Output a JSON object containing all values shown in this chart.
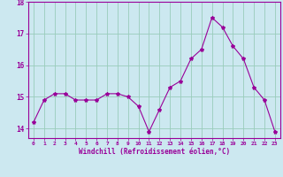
{
  "x": [
    0,
    1,
    2,
    3,
    4,
    5,
    6,
    7,
    8,
    9,
    10,
    11,
    12,
    13,
    14,
    15,
    16,
    17,
    18,
    19,
    20,
    21,
    22,
    23
  ],
  "y": [
    14.2,
    14.9,
    15.1,
    15.1,
    14.9,
    14.9,
    14.9,
    15.1,
    15.1,
    15.0,
    14.7,
    13.9,
    14.6,
    15.3,
    15.5,
    16.2,
    16.5,
    17.5,
    17.2,
    16.6,
    16.2,
    15.3,
    14.9,
    13.9
  ],
  "line_color": "#990099",
  "marker": "*",
  "marker_size": 3,
  "background_color": "#cce8f0",
  "grid_color": "#99ccbb",
  "xlabel": "Windchill (Refroidissement éolien,°C)",
  "ylabel": "",
  "ylim": [
    13.7,
    18.0
  ],
  "yticks": [
    14,
    15,
    16,
    17,
    18
  ],
  "xticks": [
    0,
    1,
    2,
    3,
    4,
    5,
    6,
    7,
    8,
    9,
    10,
    11,
    12,
    13,
    14,
    15,
    16,
    17,
    18,
    19,
    20,
    21,
    22,
    23
  ],
  "tick_color": "#990099",
  "label_color": "#990099",
  "spine_color": "#990099"
}
